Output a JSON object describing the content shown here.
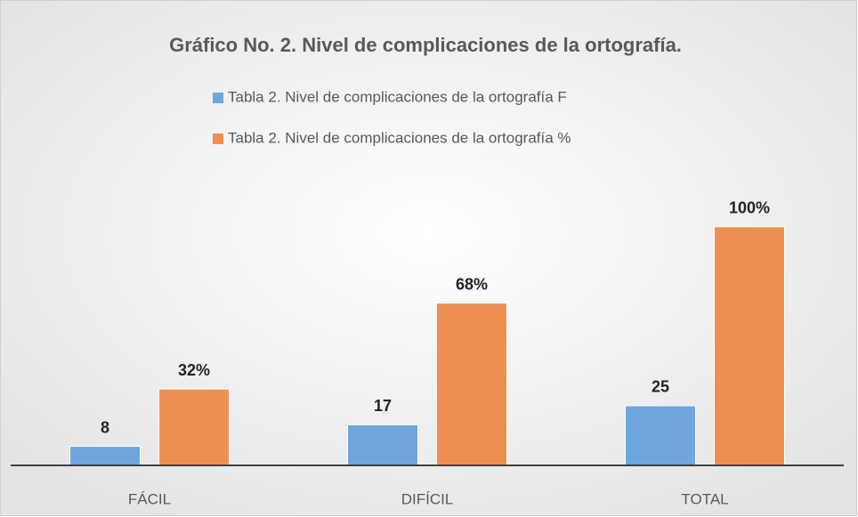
{
  "chart_data": {
    "type": "bar",
    "title": "Gráfico No. 2. Nivel de complicaciones de la ortografía.",
    "categories": [
      "FÁCIL",
      "DIFÍCIL",
      "TOTAL"
    ],
    "series": [
      {
        "name": "Tabla 2. Nivel de complicaciones de la ortografía F",
        "color": "#6fa6dc",
        "values": [
          8,
          17,
          25
        ]
      },
      {
        "name": "Tabla 2. Nivel de complicaciones de la ortografía %",
        "color": "#ee8f52",
        "values": [
          32,
          68,
          100
        ],
        "value_labels": [
          "32%",
          "68%",
          "100%"
        ]
      }
    ],
    "ylim": [
      0,
      110
    ],
    "legend": "top"
  }
}
